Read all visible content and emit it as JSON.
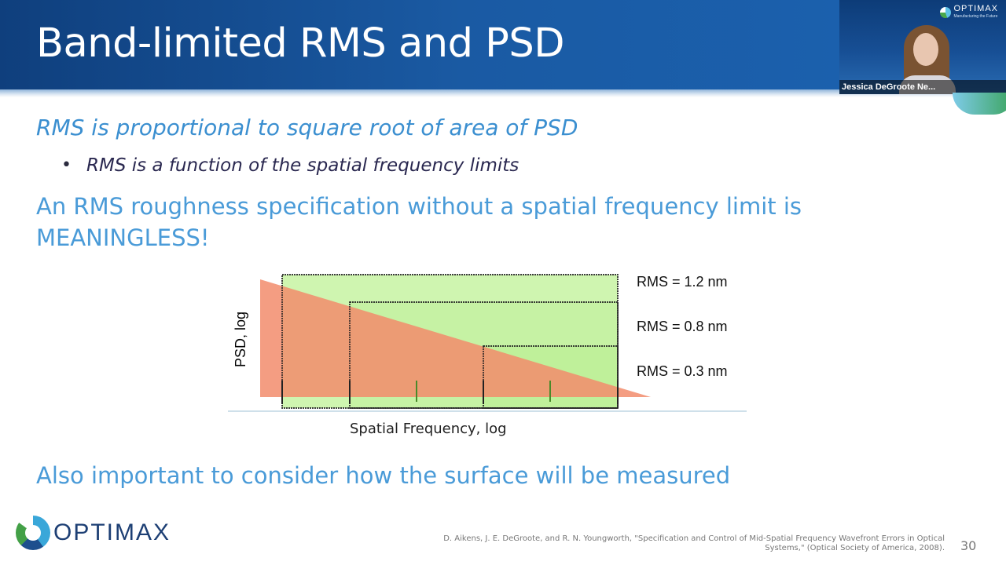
{
  "slide": {
    "title": "Band-limited RMS and PSD",
    "bullets": {
      "b1": "RMS is proportional to square root of area of PSD",
      "b2_marker": "•",
      "b2": "RMS is a function of the spatial frequency limits",
      "b3": "An RMS roughness specification without a spatial frequency limit is MEANINGLESS!",
      "b4": "Also important to consider how the surface will be measured"
    },
    "citation": "D. Aikens, J. E. DeGroote, and R. N. Youngworth, \"Specification and Control of Mid-Spatial Frequency Wavefront Errors in Optical Systems,\" (Optical Society of America, 2008).",
    "page_number": "30",
    "footer_logo_text": "OPTIMAX"
  },
  "webcam": {
    "participant_name": "Jessica DeGroote Ne...",
    "logo_text": "OPTIMAX",
    "logo_tagline": "Manufacturing the Future"
  },
  "chart_data": {
    "type": "area",
    "xlabel": "Spatial Frequency, log",
    "ylabel": "PSD, log",
    "x_scale": "log",
    "y_scale": "log",
    "psd_line": {
      "description_free": true
    },
    "bands": [
      {
        "label": "RMS = 1.2 nm"
      },
      {
        "label": "RMS = 0.8 nm"
      },
      {
        "label": "RMS = 0.3 nm"
      }
    ],
    "colors": {
      "psd_fill": "#f28c6c",
      "band_fill": "#cff5b0",
      "overlap_fill": "#e0a878",
      "band_border": "#222222",
      "tick_color": "#4a8a2a"
    }
  },
  "colors": {
    "title_bg": "#1a5aa3",
    "accent_text": "#4a9bd8",
    "subbullet_text": "#2a2850"
  }
}
